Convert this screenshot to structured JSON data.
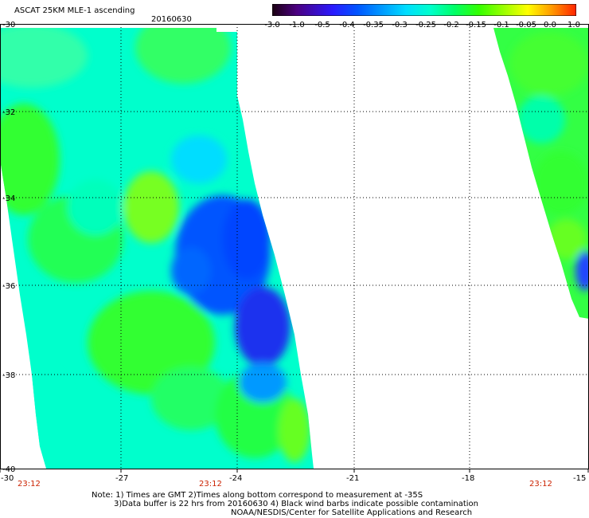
{
  "title": "ASCAT 25KM MLE-1 ascending",
  "date": "20160630",
  "colorbar": {
    "ticks": [
      "-3.0",
      "-1.0",
      "-0.5",
      "-0.4",
      "-0.35",
      "-0.3",
      "-0.25",
      "-0.2",
      "-0.15",
      "-0.1",
      "-0.05",
      "0.0",
      "1.0"
    ],
    "colors": [
      "#1a0010",
      "#4b0080",
      "#2a1aff",
      "#0055ff",
      "#0099ff",
      "#00ddff",
      "#00ffcc",
      "#00ff66",
      "#33ff00",
      "#99ff00",
      "#ffff00",
      "#ff9900",
      "#ff2200"
    ]
  },
  "axes": {
    "x_labels": [
      "-30",
      "-27",
      "-24",
      "-21",
      "-18",
      "-15"
    ],
    "y_labels": [
      "-30",
      "-32",
      "-34",
      "-36",
      "-38",
      "-40"
    ]
  },
  "times": [
    "23:12",
    "23:12",
    "23:12"
  ],
  "notes": [
    "Note: 1) Times are GMT 2)Times along bottom correspond to measurement at -35S",
    "3)Data buffer is 22 hrs from 20160630 4) Black wind barbs indicate possible contamination",
    "NOAA/NESDIS/Center for Satellite Applications and Research"
  ]
}
